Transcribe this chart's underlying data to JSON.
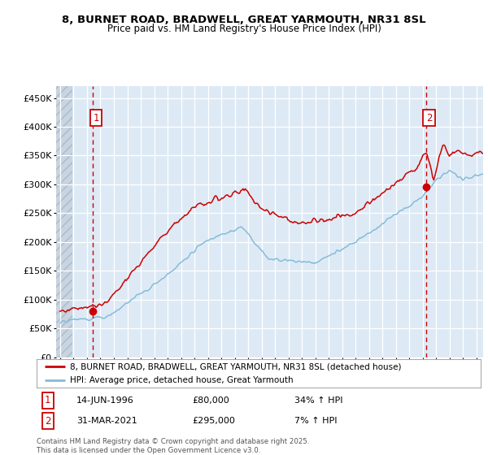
{
  "title_line1": "8, BURNET ROAD, BRADWELL, GREAT YARMOUTH, NR31 8SL",
  "title_line2": "Price paid vs. HM Land Registry's House Price Index (HPI)",
  "ylabel_ticks": [
    "£0",
    "£50K",
    "£100K",
    "£150K",
    "£200K",
    "£250K",
    "£300K",
    "£350K",
    "£400K",
    "£450K"
  ],
  "ytick_vals": [
    0,
    50000,
    100000,
    150000,
    200000,
    250000,
    300000,
    350000,
    400000,
    450000
  ],
  "xlim_start": 1993.7,
  "xlim_end": 2025.5,
  "ylim": [
    0,
    470000
  ],
  "red_line_color": "#cc0000",
  "blue_line_color": "#85bcd8",
  "sale1_x": 1996.45,
  "sale1_y": 80000,
  "sale1_label": "14-JUN-1996",
  "sale1_price": "£80,000",
  "sale1_hpi": "34% ↑ HPI",
  "sale2_x": 2021.25,
  "sale2_y": 295000,
  "sale2_label": "31-MAR-2021",
  "sale2_price": "£295,000",
  "sale2_hpi": "7% ↑ HPI",
  "legend_label1": "8, BURNET ROAD, BRADWELL, GREAT YARMOUTH, NR31 8SL (detached house)",
  "legend_label2": "HPI: Average price, detached house, Great Yarmouth",
  "footer": "Contains HM Land Registry data © Crown copyright and database right 2025.\nThis data is licensed under the Open Government Licence v3.0.",
  "bg_color": "#ddeaf5",
  "grid_color": "#ffffff",
  "annotation_box_color": "#cc0000",
  "hatch_end": 1994.92
}
